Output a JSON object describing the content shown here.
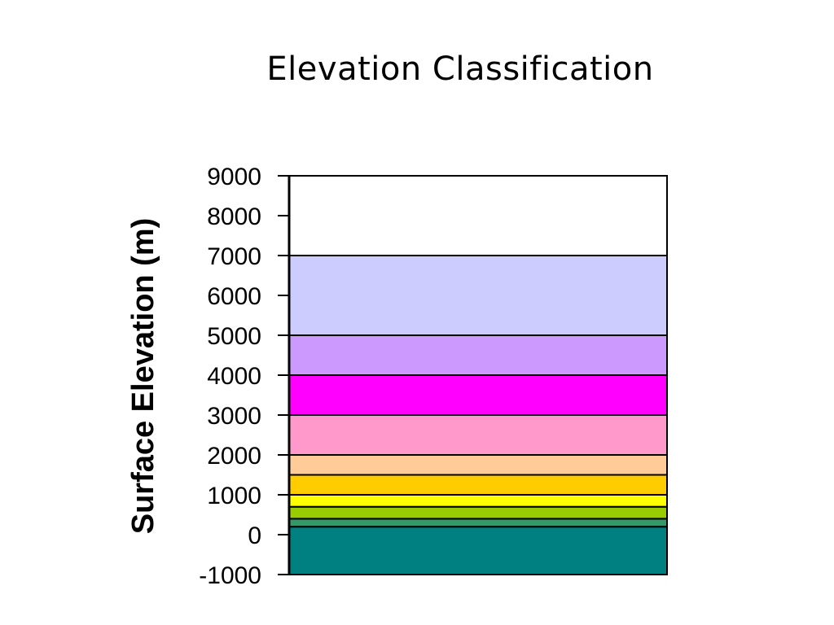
{
  "chart_data": {
    "type": "area",
    "title": "Elevation Classification",
    "xlabel": "",
    "ylabel": "Surface Elevation (m)",
    "ylim": [
      -1000,
      9000
    ],
    "yticks": [
      9000,
      8000,
      7000,
      6000,
      5000,
      4000,
      3000,
      2000,
      1000,
      0,
      -1000
    ],
    "grid": false,
    "bands": [
      {
        "from": -1000,
        "to": 200,
        "color": "#008080"
      },
      {
        "from": 200,
        "to": 400,
        "color": "#339966"
      },
      {
        "from": 400,
        "to": 700,
        "color": "#99CC00"
      },
      {
        "from": 700,
        "to": 1000,
        "color": "#FFFF00"
      },
      {
        "from": 1000,
        "to": 1500,
        "color": "#FFCC00"
      },
      {
        "from": 1500,
        "to": 2000,
        "color": "#FFCC99"
      },
      {
        "from": 2000,
        "to": 3000,
        "color": "#FF99CC"
      },
      {
        "from": 3000,
        "to": 4000,
        "color": "#FF00FF"
      },
      {
        "from": 4000,
        "to": 5000,
        "color": "#CC99FF"
      },
      {
        "from": 5000,
        "to": 7000,
        "color": "#CCCCFF"
      },
      {
        "from": 7000,
        "to": 9000,
        "color": "#FFFFFF"
      }
    ]
  }
}
